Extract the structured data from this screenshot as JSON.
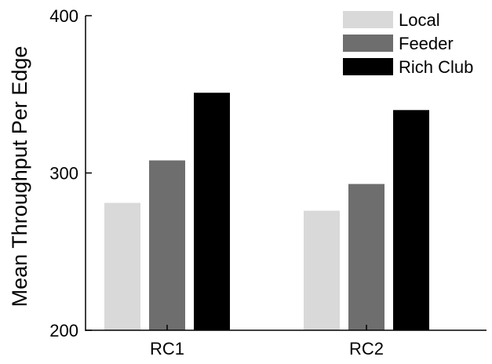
{
  "chart_data": {
    "type": "bar",
    "title": "",
    "xlabel": "",
    "ylabel": "Mean Throughput Per Edge",
    "categories": [
      "RC1",
      "RC2"
    ],
    "series": [
      {
        "name": "Local",
        "values": [
          281,
          276
        ],
        "color": "#d9d9d9"
      },
      {
        "name": "Feeder",
        "values": [
          308,
          293
        ],
        "color": "#6e6e6e"
      },
      {
        "name": "Rich Club",
        "values": [
          351,
          340
        ],
        "color": "#000000"
      }
    ],
    "ylim": [
      200,
      400
    ],
    "yticks": [
      "200",
      "300",
      "400"
    ],
    "grid": false,
    "legend_position": "top-right"
  }
}
